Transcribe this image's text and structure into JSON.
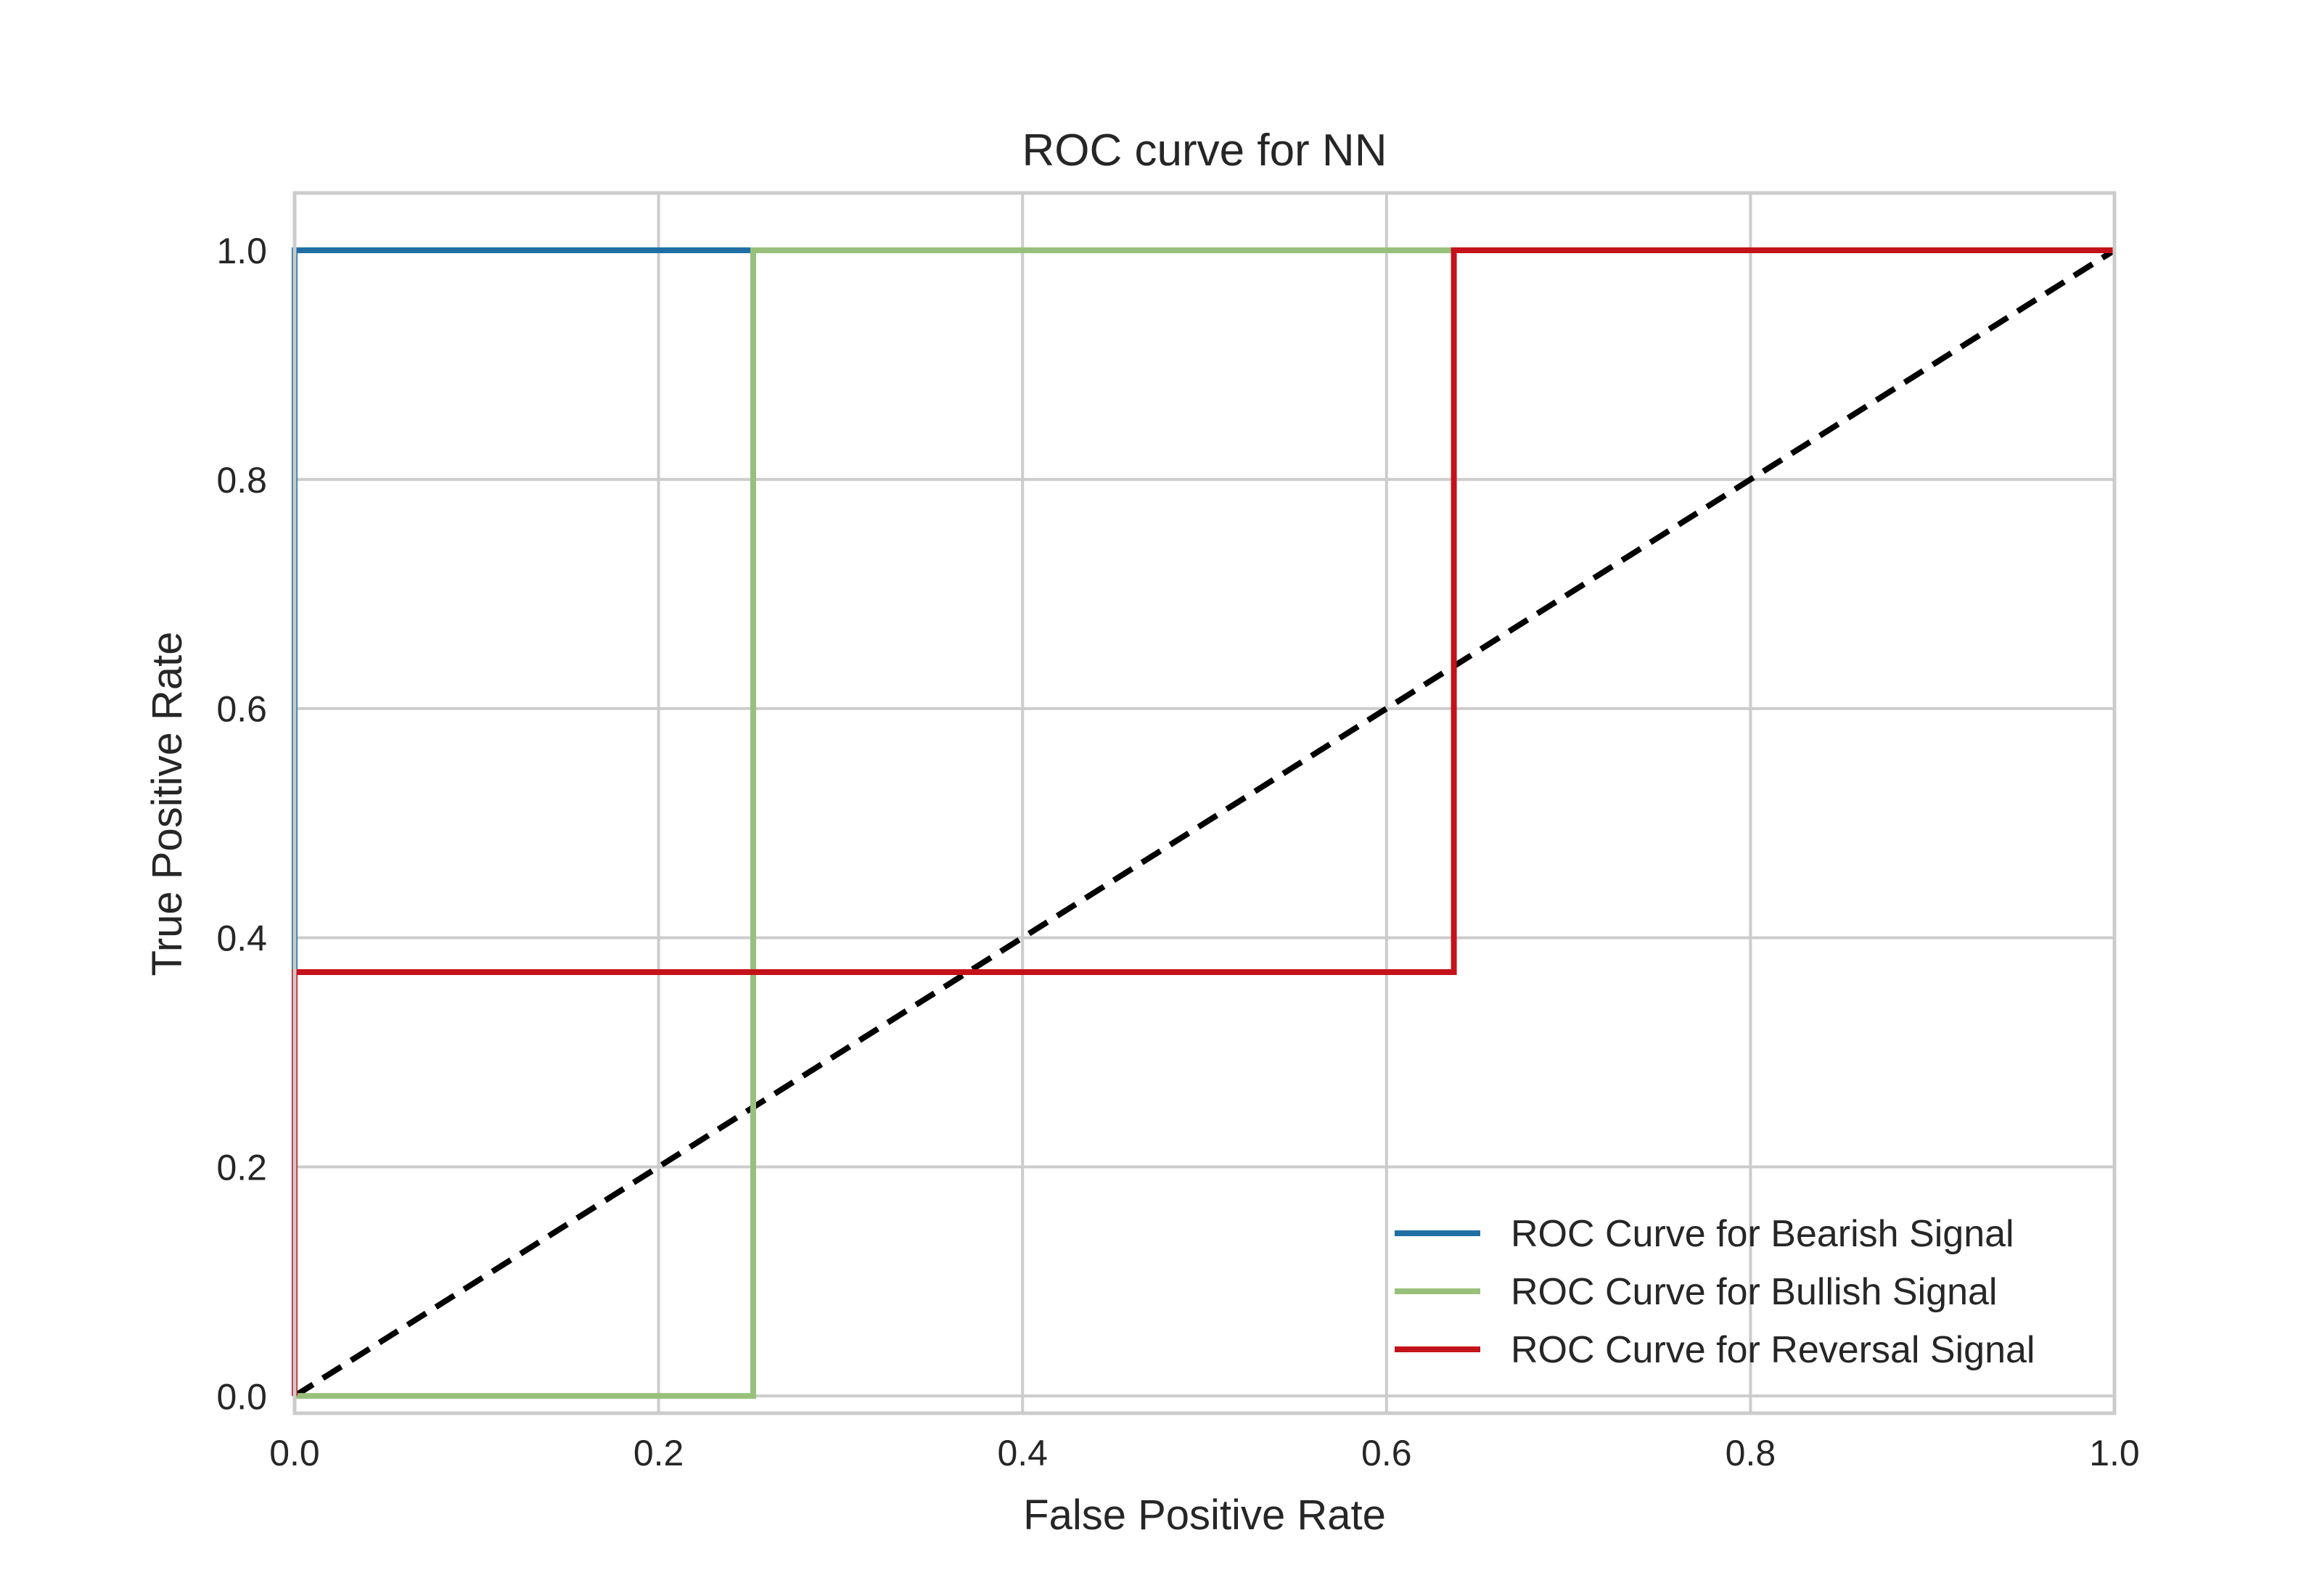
{
  "chart_data": {
    "type": "line",
    "title": "ROC curve for NN",
    "xlabel": "False Positive Rate",
    "ylabel": "True Positive Rate",
    "xlim": [
      0.0,
      1.0
    ],
    "ylim": [
      -0.015,
      1.05
    ],
    "x_ticks": [
      "0.0",
      "0.2",
      "0.4",
      "0.6",
      "0.8",
      "1.0"
    ],
    "y_ticks": [
      "0.0",
      "0.2",
      "0.4",
      "0.6",
      "0.8",
      "1.0"
    ],
    "grid": true,
    "legend_position": "lower-right",
    "series": [
      {
        "name": "ROC Curve for Bearish Signal",
        "color": "#1f6fa5",
        "x": [
          0.0,
          0.0,
          0.25,
          1.0
        ],
        "y": [
          0.0,
          1.0,
          1.0,
          1.0
        ]
      },
      {
        "name": "ROC Curve for Bullish Signal",
        "color": "#98c07a",
        "x": [
          0.0,
          0.252,
          0.252,
          1.0
        ],
        "y": [
          0.0,
          0.0,
          1.0,
          1.0
        ]
      },
      {
        "name": "ROC Curve for Reversal Signal",
        "color": "#c4121a",
        "x": [
          0.0,
          0.0,
          0.637,
          0.637,
          1.0
        ],
        "y": [
          0.0,
          0.37,
          0.37,
          1.0,
          1.0
        ]
      }
    ],
    "reference_line": {
      "color": "#000000",
      "style": "dashed",
      "x": [
        0.0,
        1.0
      ],
      "y": [
        0.0,
        1.0
      ]
    }
  }
}
